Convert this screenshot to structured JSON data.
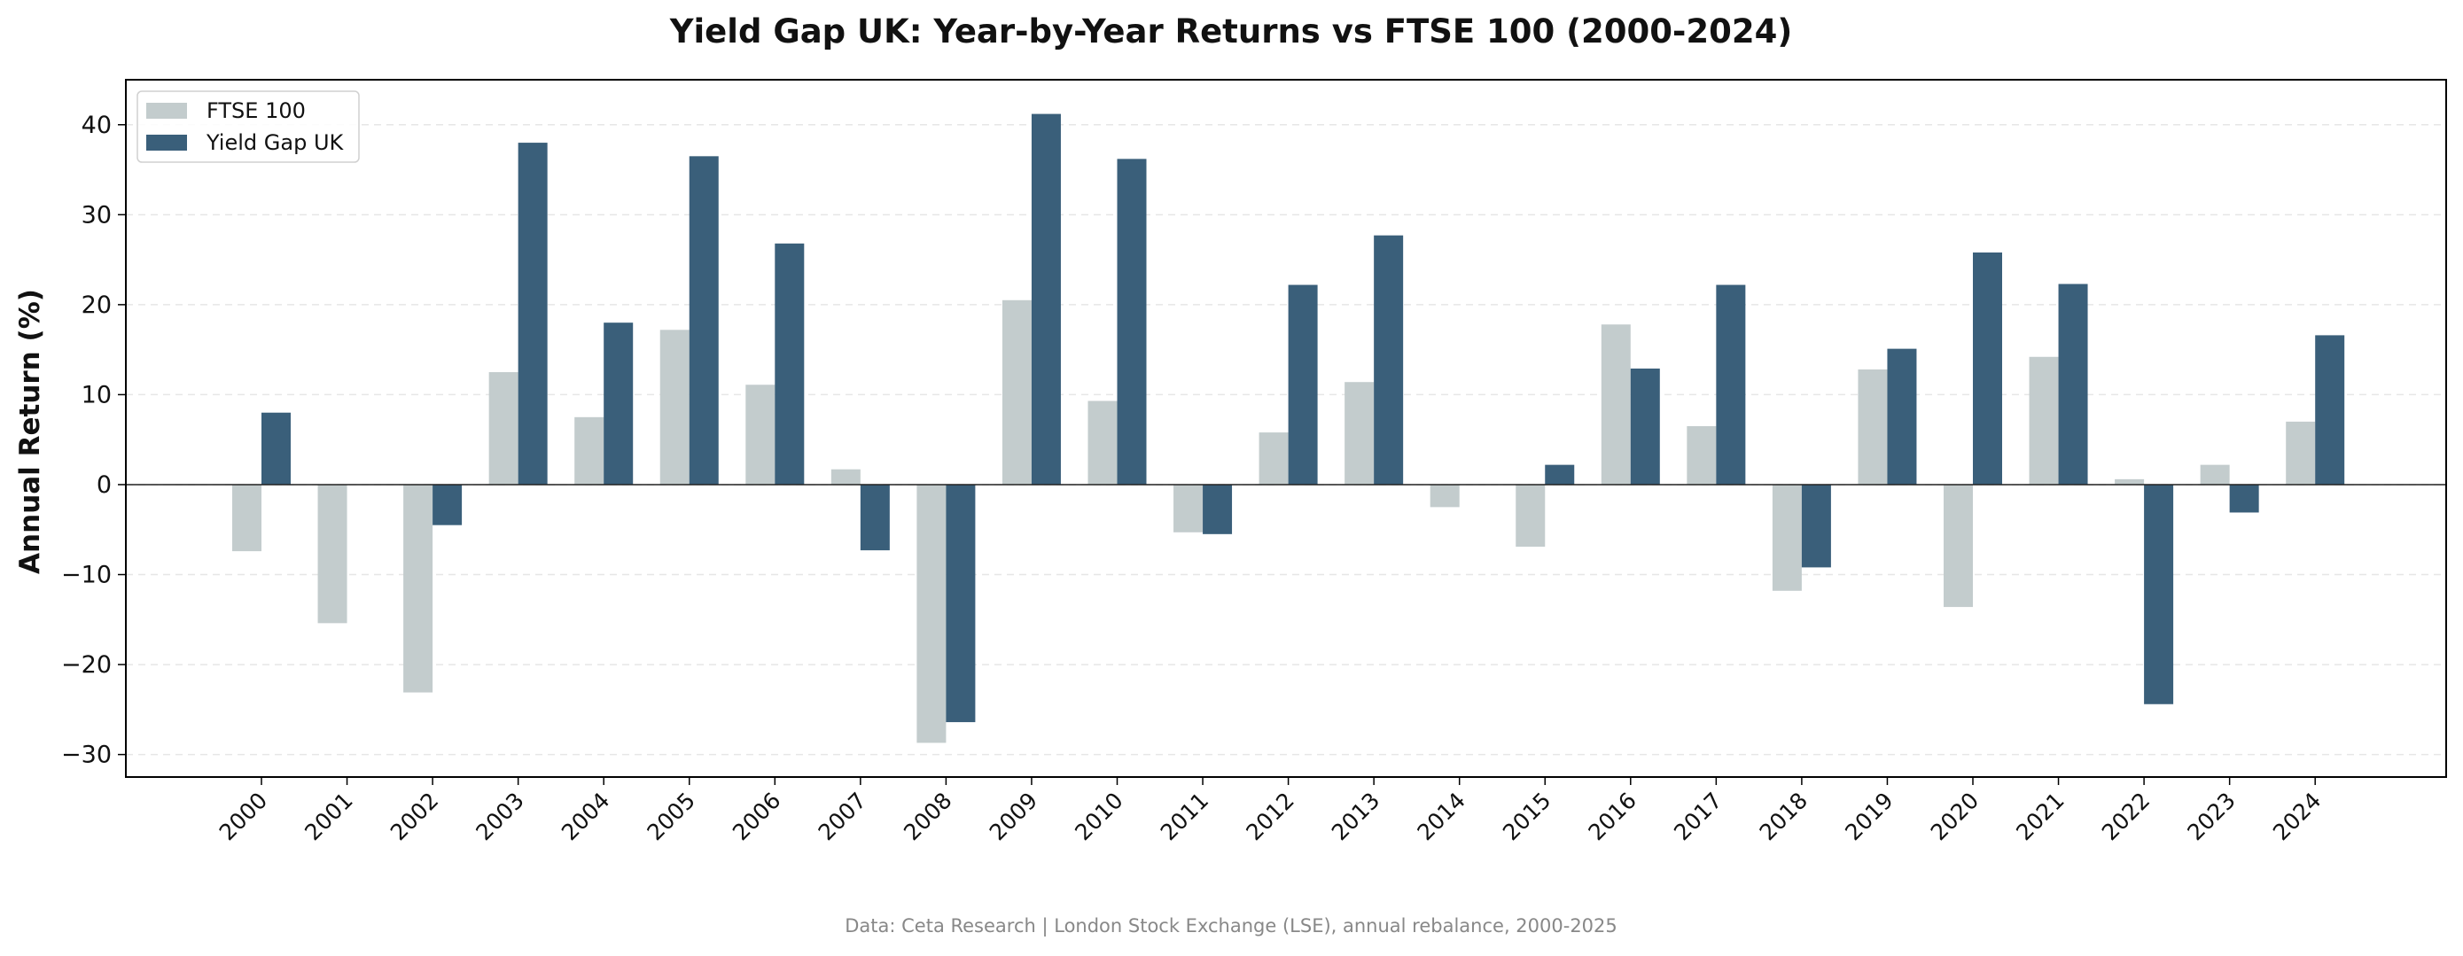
{
  "chart_data": {
    "type": "bar",
    "title": "Yield Gap UK: Year-by-Year Returns vs FTSE 100 (2000-2024)",
    "xlabel": "",
    "ylabel": "Annual Return (%)",
    "ylim": [
      -32.5,
      45.0
    ],
    "yticks": [
      -30,
      -20,
      -10,
      0,
      10,
      20,
      30,
      40
    ],
    "ytick_labels": [
      "−30",
      "−20",
      "−10",
      "0",
      "10",
      "20",
      "30",
      "40"
    ],
    "grid": "y-dashed",
    "legend_position": "top-left",
    "categories": [
      "2000",
      "2001",
      "2002",
      "2003",
      "2004",
      "2005",
      "2006",
      "2007",
      "2008",
      "2009",
      "2010",
      "2011",
      "2012",
      "2013",
      "2014",
      "2015",
      "2016",
      "2017",
      "2018",
      "2019",
      "2020",
      "2021",
      "2022",
      "2023",
      "2024"
    ],
    "series": [
      {
        "name": "FTSE 100",
        "color": "#c3cccd",
        "values": [
          -7.4,
          -15.4,
          -23.1,
          12.5,
          7.5,
          17.2,
          11.1,
          1.7,
          -28.7,
          20.5,
          9.3,
          -5.3,
          5.8,
          11.4,
          -2.5,
          -6.9,
          17.8,
          6.5,
          -11.8,
          12.8,
          -13.6,
          14.2,
          0.6,
          2.2,
          7.0
        ]
      },
      {
        "name": "Yield Gap UK",
        "color": "#3a5f7a",
        "values": [
          8.0,
          0.0,
          -4.5,
          38.0,
          18.0,
          36.5,
          26.8,
          -7.3,
          -26.4,
          41.2,
          36.2,
          -5.5,
          22.2,
          27.7,
          0.0,
          2.2,
          12.9,
          22.2,
          -9.2,
          15.1,
          25.8,
          22.3,
          -24.4,
          -3.1,
          16.6
        ]
      }
    ],
    "footnote": "Data: Ceta Research | London Stock Exchange (LSE), annual rebalance, 2000-2025"
  }
}
